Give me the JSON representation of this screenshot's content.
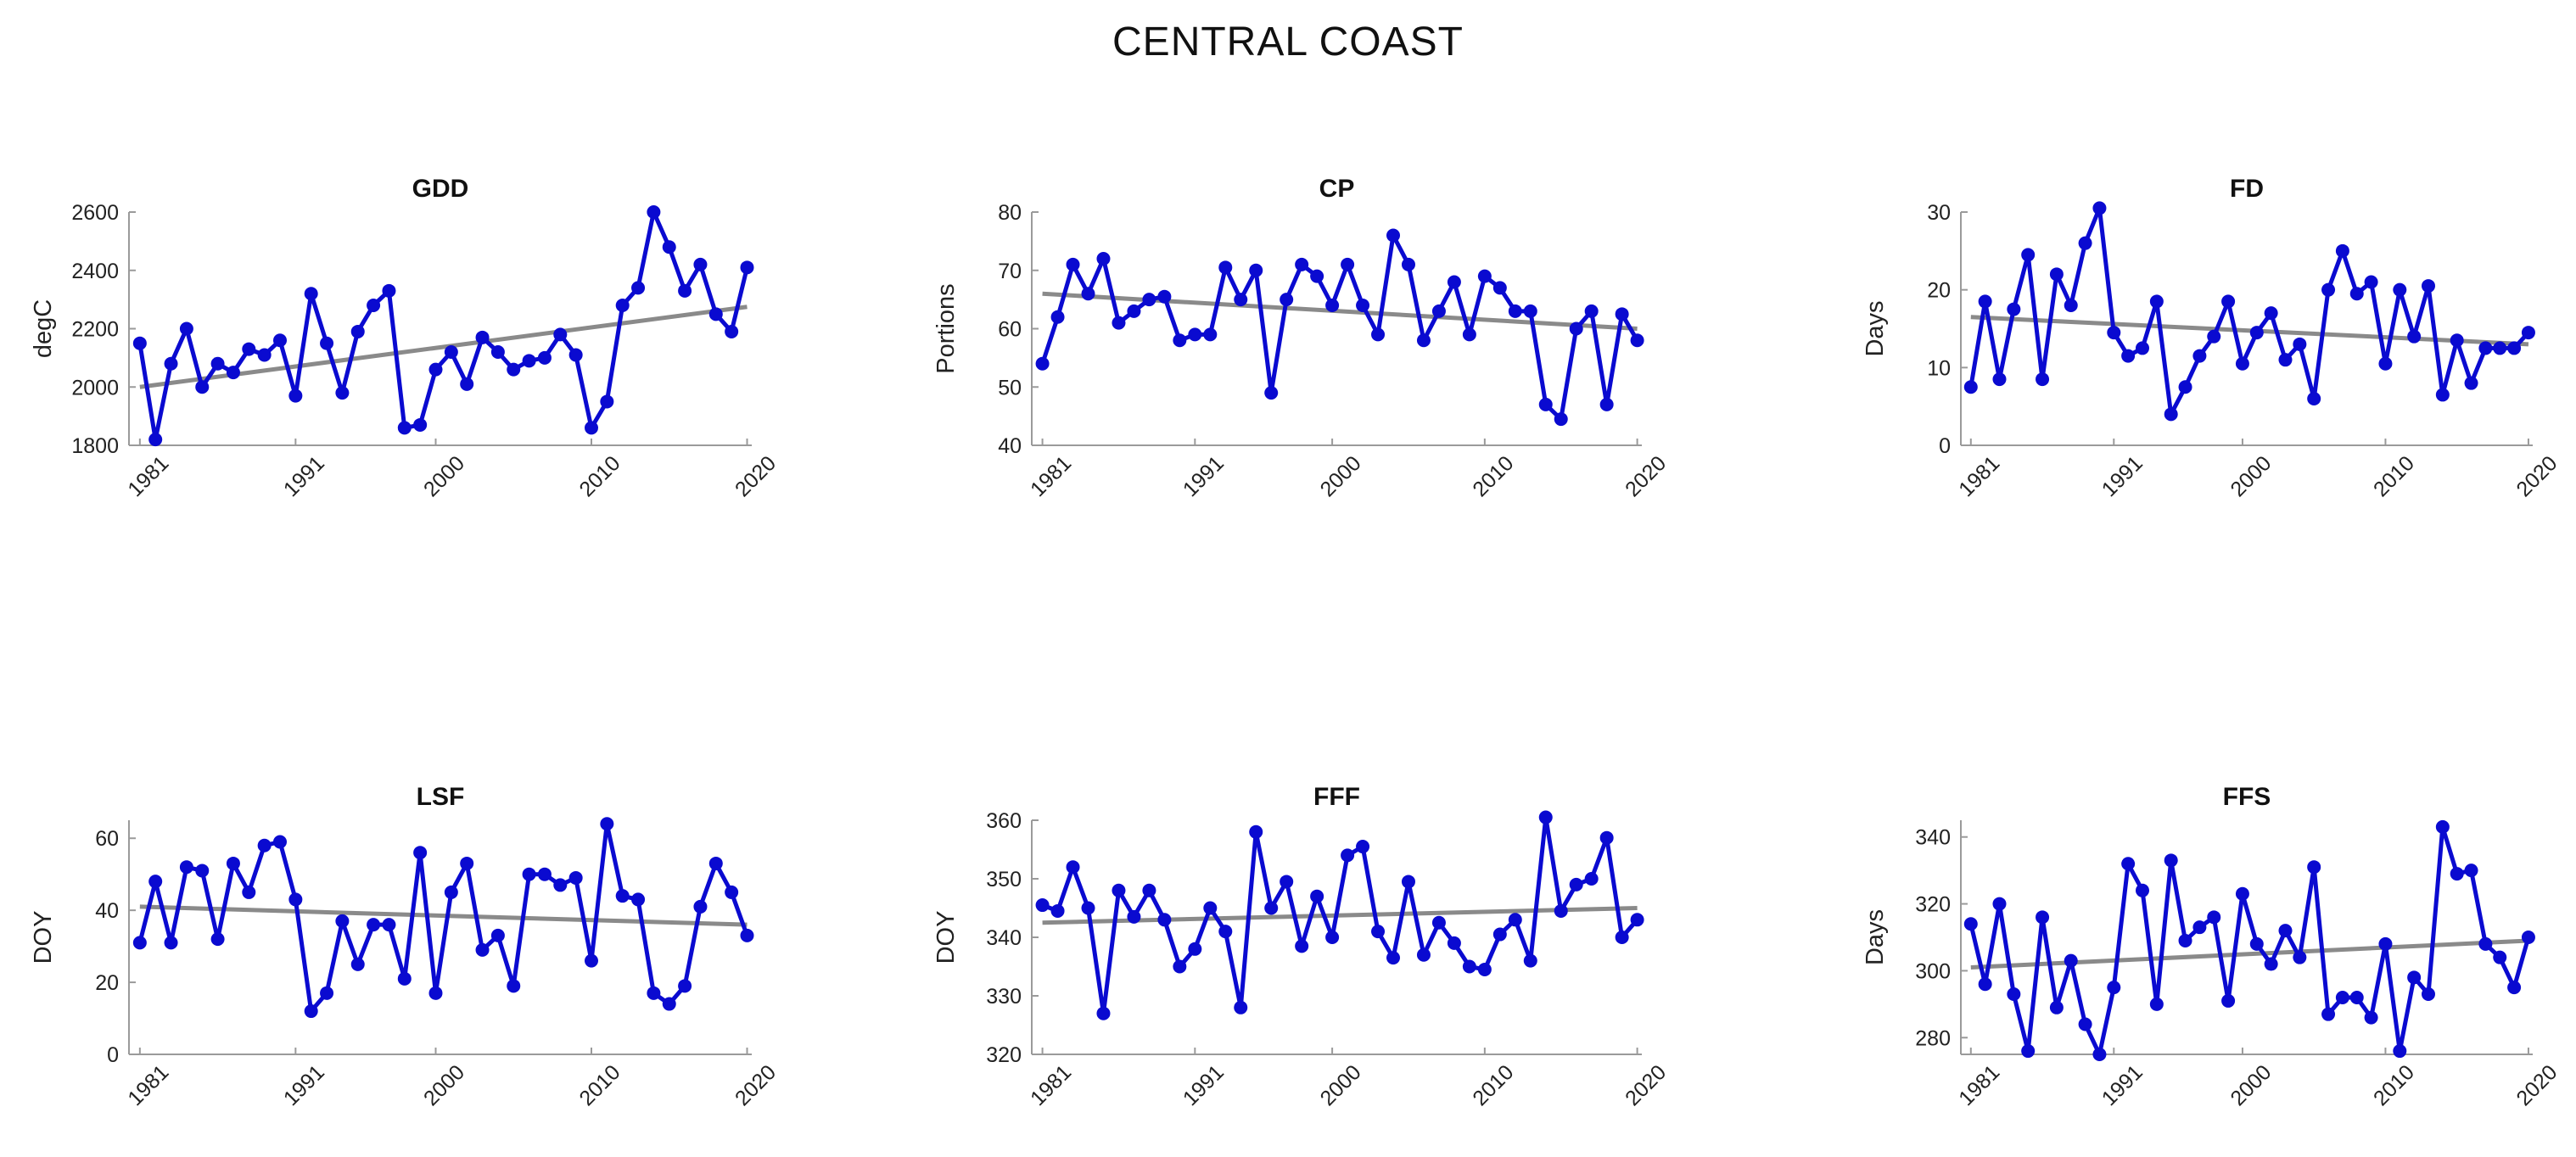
{
  "title": "CENTRAL COAST",
  "colors": {
    "series": "#0a0ad0",
    "trend": "#8a8a8a",
    "axis": "#9a9a9a"
  },
  "chart_data": [
    {
      "type": "line",
      "title": "GDD",
      "ylabel": "degC",
      "xlabel": "",
      "ylim": [
        1800,
        2600
      ],
      "yticks": [
        "1800",
        "2000",
        "2200",
        "2400",
        "2600"
      ],
      "xticks": [
        "1981",
        "1991",
        "2000",
        "2010",
        "2020"
      ],
      "x": [
        1981,
        1982,
        1983,
        1984,
        1985,
        1986,
        1987,
        1988,
        1989,
        1990,
        1991,
        1992,
        1993,
        1994,
        1995,
        1996,
        1997,
        1998,
        1999,
        2000,
        2001,
        2002,
        2003,
        2004,
        2005,
        2006,
        2007,
        2008,
        2009,
        2010,
        2011,
        2012,
        2013,
        2014,
        2015,
        2016,
        2017,
        2018,
        2019,
        2020
      ],
      "values": [
        2150,
        1820,
        2080,
        2200,
        2000,
        2080,
        2050,
        2130,
        2110,
        2160,
        1970,
        2320,
        2150,
        1980,
        2190,
        2280,
        2330,
        1860,
        1870,
        2060,
        2120,
        2010,
        2170,
        2120,
        2060,
        2090,
        2100,
        2180,
        2110,
        1860,
        1950,
        2280,
        2340,
        2600,
        2480,
        2330,
        2420,
        2250,
        2190,
        2410
      ],
      "trend": [
        2000,
        2275
      ]
    },
    {
      "type": "line",
      "title": "CP",
      "ylabel": "Portions",
      "xlabel": "",
      "ylim": [
        40,
        80
      ],
      "yticks": [
        "40",
        "50",
        "60",
        "70",
        "80"
      ],
      "xticks": [
        "1981",
        "1991",
        "2000",
        "2010",
        "2020"
      ],
      "x": [
        1981,
        1982,
        1983,
        1984,
        1985,
        1986,
        1987,
        1988,
        1989,
        1990,
        1991,
        1992,
        1993,
        1994,
        1995,
        1996,
        1997,
        1998,
        1999,
        2000,
        2001,
        2002,
        2003,
        2004,
        2005,
        2006,
        2007,
        2008,
        2009,
        2010,
        2011,
        2012,
        2013,
        2014,
        2015,
        2016,
        2017,
        2018,
        2019,
        2020
      ],
      "values": [
        54,
        62,
        71,
        66,
        72,
        61,
        63,
        65,
        65.5,
        58,
        59,
        59,
        70.5,
        65,
        70,
        49,
        65,
        71,
        69,
        64,
        71,
        64,
        59,
        76,
        71,
        58,
        63,
        68,
        59,
        69,
        67,
        63,
        63,
        47,
        44.5,
        60,
        63,
        47,
        62.5,
        58
      ],
      "trend": [
        66,
        60
      ]
    },
    {
      "type": "line",
      "title": "FD",
      "ylabel": "Days",
      "xlabel": "",
      "ylim": [
        0,
        30
      ],
      "yticks": [
        "0",
        "10",
        "20",
        "30"
      ],
      "xticks": [
        "1981",
        "1991",
        "2000",
        "2010",
        "2020"
      ],
      "x": [
        1981,
        1982,
        1983,
        1984,
        1985,
        1986,
        1987,
        1988,
        1989,
        1990,
        1991,
        1992,
        1993,
        1994,
        1995,
        1996,
        1997,
        1998,
        1999,
        2000,
        2001,
        2002,
        2003,
        2004,
        2005,
        2006,
        2007,
        2008,
        2009,
        2010,
        2011,
        2012,
        2013,
        2014,
        2015,
        2016,
        2017,
        2018,
        2019,
        2020
      ],
      "values": [
        7.5,
        18.5,
        8.5,
        17.5,
        24.5,
        8.5,
        22,
        18,
        26,
        30.5,
        14.5,
        11.5,
        12.5,
        18.5,
        4,
        7.5,
        11.5,
        14,
        18.5,
        10.5,
        14.5,
        17,
        11,
        13,
        6,
        20,
        25,
        19.5,
        21,
        10.5,
        20,
        14,
        20.5,
        6.5,
        13.5,
        8,
        12.5,
        12.5,
        12.5,
        14.5
      ],
      "trend": [
        16.5,
        13
      ]
    },
    {
      "type": "line",
      "title": "LSF",
      "ylabel": "DOY",
      "xlabel": "",
      "ylim": [
        0,
        65
      ],
      "yticks": [
        "0",
        "20",
        "40",
        "60"
      ],
      "xticks": [
        "1981",
        "1991",
        "2000",
        "2010",
        "2020"
      ],
      "x": [
        1981,
        1982,
        1983,
        1984,
        1985,
        1986,
        1987,
        1988,
        1989,
        1990,
        1991,
        1992,
        1993,
        1994,
        1995,
        1996,
        1997,
        1998,
        1999,
        2000,
        2001,
        2002,
        2003,
        2004,
        2005,
        2006,
        2007,
        2008,
        2009,
        2010,
        2011,
        2012,
        2013,
        2014,
        2015,
        2016,
        2017,
        2018,
        2019,
        2020
      ],
      "values": [
        31,
        48,
        31,
        52,
        51,
        32,
        53,
        45,
        58,
        59,
        43,
        12,
        17,
        37,
        25,
        36,
        36,
        21,
        56,
        17,
        45,
        53,
        29,
        33,
        19,
        50,
        50,
        47,
        49,
        26,
        64,
        44,
        43,
        17,
        14,
        19,
        41,
        53,
        45,
        33
      ],
      "trend": [
        41,
        36
      ]
    },
    {
      "type": "line",
      "title": "FFF",
      "ylabel": "DOY",
      "xlabel": "",
      "ylim": [
        320,
        360
      ],
      "yticks": [
        "320",
        "330",
        "340",
        "350",
        "360"
      ],
      "xticks": [
        "1981",
        "1991",
        "2000",
        "2010",
        "2020"
      ],
      "x": [
        1981,
        1982,
        1983,
        1984,
        1985,
        1986,
        1987,
        1988,
        1989,
        1990,
        1991,
        1992,
        1993,
        1994,
        1995,
        1996,
        1997,
        1998,
        1999,
        2000,
        2001,
        2002,
        2003,
        2004,
        2005,
        2006,
        2007,
        2008,
        2009,
        2010,
        2011,
        2012,
        2013,
        2014,
        2015,
        2016,
        2017,
        2018,
        2019,
        2020
      ],
      "values": [
        345.5,
        344.5,
        352,
        345,
        327,
        348,
        343.5,
        348,
        343,
        335,
        338,
        345,
        341,
        328,
        358,
        345,
        349.5,
        338.5,
        347,
        340,
        354,
        355.5,
        341,
        336.5,
        349.5,
        337,
        342.5,
        339,
        335,
        334.5,
        340.5,
        343,
        336,
        360.5,
        344.5,
        349,
        350,
        357,
        340,
        343
      ],
      "trend": [
        342.5,
        345
      ]
    },
    {
      "type": "line",
      "title": "FFS",
      "ylabel": "Days",
      "xlabel": "",
      "ylim": [
        275,
        345
      ],
      "yticks": [
        "280",
        "300",
        "320",
        "340"
      ],
      "xticks": [
        "1981",
        "1991",
        "2000",
        "2010",
        "2020"
      ],
      "x": [
        1981,
        1982,
        1983,
        1984,
        1985,
        1986,
        1987,
        1988,
        1989,
        1990,
        1991,
        1992,
        1993,
        1994,
        1995,
        1996,
        1997,
        1998,
        1999,
        2000,
        2001,
        2002,
        2003,
        2004,
        2005,
        2006,
        2007,
        2008,
        2009,
        2010,
        2011,
        2012,
        2013,
        2014,
        2015,
        2016,
        2017,
        2018,
        2019,
        2020
      ],
      "values": [
        314,
        296,
        320,
        293,
        276,
        316,
        289,
        303,
        284,
        275,
        295,
        332,
        324,
        290,
        333,
        309,
        313,
        316,
        291,
        323,
        308,
        302,
        312,
        304,
        331,
        287,
        292,
        292,
        286,
        308,
        276,
        298,
        293,
        343,
        329,
        330,
        308,
        304,
        295,
        310
      ],
      "trend": [
        301,
        309
      ]
    }
  ]
}
